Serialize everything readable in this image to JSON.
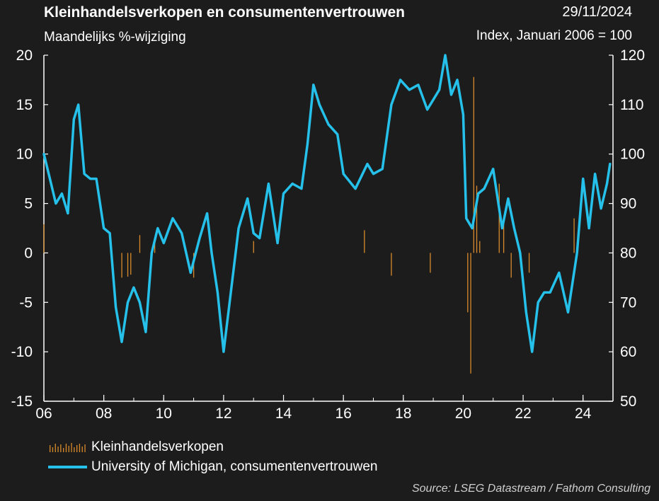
{
  "header": {
    "title": "Kleinhandelsverkopen en consumentenvertrouwen",
    "date": "29/11/2024",
    "subtitle_left": "Maandelijks %-wijziging",
    "subtitle_right": "Index, Januari 2006 = 100"
  },
  "footer": {
    "source": "Source: LSEG Datastream / Fathom Consulting"
  },
  "colors": {
    "background": "#1c1c1c",
    "bars": "#d88a2b",
    "line": "#25c1ea",
    "axis": "#ffffff"
  },
  "chart_data": {
    "type": "bar+line",
    "x_ticks": [
      "06",
      "08",
      "10",
      "12",
      "14",
      "16",
      "18",
      "20",
      "22",
      "24"
    ],
    "x_tick_years": [
      2006,
      2008,
      2010,
      2012,
      2014,
      2016,
      2018,
      2020,
      2022,
      2024
    ],
    "xlim": [
      2006,
      2025
    ],
    "y_left": {
      "ylim": [
        -15,
        20
      ],
      "ticks": [
        "-15",
        "-10",
        "-5",
        "0",
        "5",
        "10",
        "15",
        "20"
      ]
    },
    "y_right": {
      "ylim": [
        50,
        120
      ],
      "ticks": [
        "50",
        "60",
        "70",
        "80",
        "90",
        "100",
        "110",
        "120"
      ]
    },
    "legend": [
      "Kleinhandelsverkopen",
      "University of Michigan, consumentenvertrouwen"
    ],
    "legend_position": "bottom-left",
    "series": [
      {
        "name": "Kleinhandelsverkopen",
        "type": "bar",
        "axis": "left",
        "x": [
          2006.0,
          2008.6,
          2008.8,
          2008.9,
          2009.2,
          2009.7,
          2011.0,
          2013.0,
          2016.7,
          2017.6,
          2018.9,
          2020.15,
          2020.25,
          2020.35,
          2020.45,
          2020.55,
          2021.2,
          2021.35,
          2021.6,
          2022.2,
          2023.7
        ],
        "values": [
          2.9,
          -2.5,
          -2.4,
          -2.2,
          1.8,
          1.4,
          -2.5,
          1.2,
          2.3,
          -2.3,
          -2.0,
          -6.0,
          -12.2,
          17.8,
          6.8,
          1.2,
          7.0,
          3.0,
          -2.5,
          -2.0,
          3.5
        ]
      },
      {
        "name": "University of Michigan, consumentenvertrouwen",
        "type": "line",
        "axis": "right",
        "x": [
          2006.0,
          2006.2,
          2006.4,
          2006.6,
          2006.8,
          2007.0,
          2007.15,
          2007.35,
          2007.55,
          2007.75,
          2008.0,
          2008.2,
          2008.4,
          2008.6,
          2008.8,
          2009.0,
          2009.2,
          2009.4,
          2009.6,
          2009.8,
          2010.0,
          2010.3,
          2010.6,
          2010.9,
          2011.2,
          2011.45,
          2011.6,
          2011.8,
          2012.0,
          2012.2,
          2012.5,
          2012.8,
          2013.0,
          2013.2,
          2013.5,
          2013.8,
          2014.0,
          2014.3,
          2014.6,
          2014.8,
          2015.0,
          2015.2,
          2015.5,
          2015.8,
          2016.0,
          2016.4,
          2016.8,
          2017.0,
          2017.3,
          2017.6,
          2017.9,
          2018.2,
          2018.5,
          2018.8,
          2019.0,
          2019.2,
          2019.4,
          2019.6,
          2019.8,
          2020.0,
          2020.1,
          2020.3,
          2020.5,
          2020.7,
          2021.0,
          2021.3,
          2021.5,
          2021.7,
          2021.9,
          2022.1,
          2022.3,
          2022.5,
          2022.7,
          2022.9,
          2023.2,
          2023.5,
          2023.8,
          2024.0,
          2024.2,
          2024.4,
          2024.6,
          2024.8,
          2024.9
        ],
        "values": [
          100,
          95,
          90,
          92,
          88,
          107,
          110,
          96,
          95,
          95,
          85,
          84,
          69,
          62,
          70,
          73,
          70,
          64,
          80,
          85,
          82,
          87,
          84,
          76,
          83,
          88,
          80,
          72,
          60,
          70,
          85,
          91,
          84,
          83,
          94,
          82,
          92,
          94,
          93,
          102,
          114,
          110,
          106,
          104,
          96,
          93,
          98,
          96,
          97,
          110,
          115,
          113,
          114,
          109,
          111,
          113,
          120,
          112,
          115,
          108,
          87,
          85,
          92,
          93,
          97,
          85,
          91,
          85,
          80,
          68,
          60,
          70,
          72,
          72,
          76,
          68,
          80,
          95,
          85,
          96,
          89,
          94,
          98
        ]
      }
    ]
  }
}
